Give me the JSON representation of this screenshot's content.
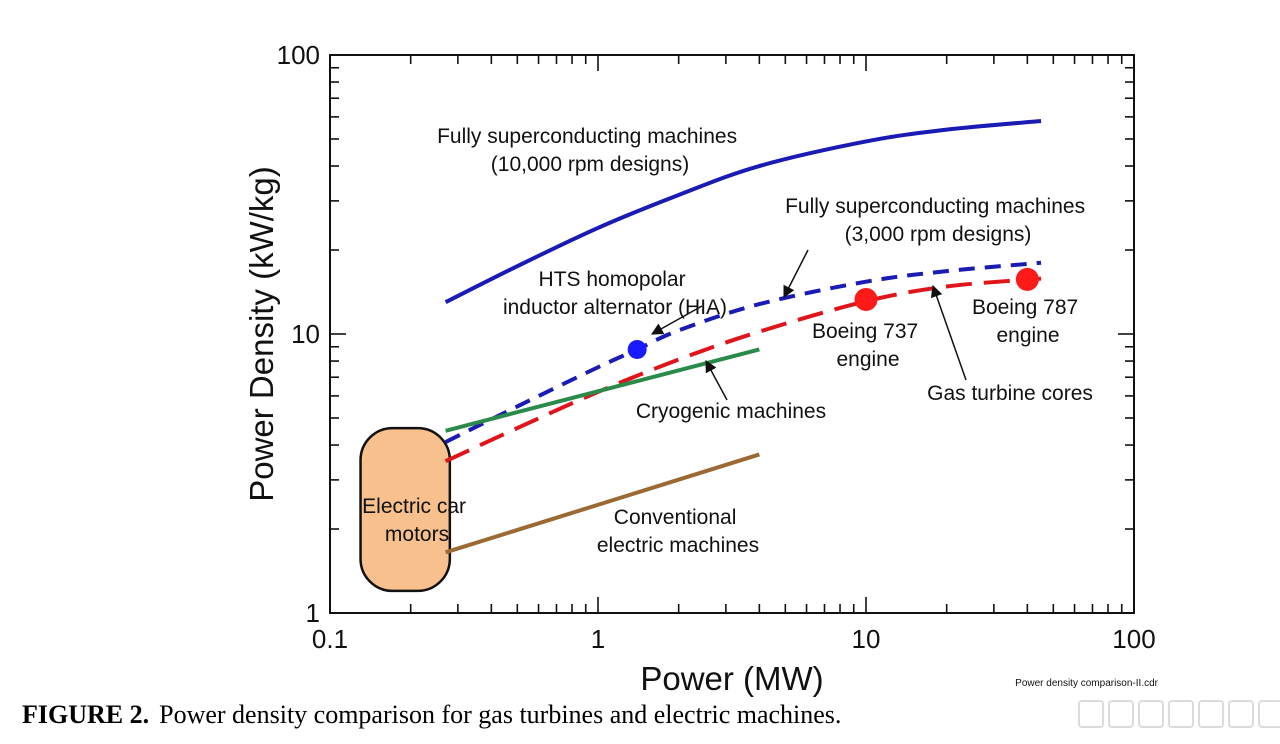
{
  "chart_data": {
    "type": "line",
    "x_scale": "log",
    "y_scale": "log",
    "xlim": [
      0.1,
      100
    ],
    "ylim": [
      1,
      100
    ],
    "xlabel": "Power (MW)",
    "ylabel": "Power Density (kW/kg)",
    "x_tick_labels": [
      "0.1",
      "1",
      "10",
      "100"
    ],
    "y_tick_labels": [
      "1",
      "10",
      "100"
    ],
    "grid": false,
    "series": [
      {
        "id": "fully_sc_10000",
        "color": "#1a1ab4",
        "style": "solid",
        "x": [
          0.27,
          0.5,
          1,
          2,
          4,
          10,
          20,
          45
        ],
        "y": [
          13,
          17.5,
          24,
          31.5,
          40,
          49,
          54,
          58
        ]
      },
      {
        "id": "fully_sc_3000",
        "color": "#1a1ab4",
        "style": "dashed",
        "x": [
          0.27,
          0.5,
          1,
          1.4,
          2,
          4,
          10,
          20,
          45
        ],
        "y": [
          4.1,
          5.5,
          7.6,
          8.8,
          10.3,
          12.8,
          15.4,
          16.8,
          18
        ]
      },
      {
        "id": "gas_turbine_cores",
        "color": "#e0151c",
        "style": "dashed",
        "x": [
          0.27,
          0.5,
          1,
          2,
          4,
          10,
          20,
          45
        ],
        "y": [
          3.5,
          4.6,
          6.2,
          8.1,
          10.2,
          13.1,
          14.8,
          15.8
        ]
      },
      {
        "id": "cryogenic",
        "color": "#2a8a4a",
        "style": "solid",
        "x": [
          0.27,
          4
        ],
        "y": [
          4.5,
          8.8
        ]
      },
      {
        "id": "conventional",
        "color": "#9b6a34",
        "style": "solid",
        "x": [
          0.27,
          4
        ],
        "y": [
          1.65,
          3.7
        ]
      }
    ],
    "points": [
      {
        "x": 1.4,
        "y": 8.8,
        "color": "#1a1aff",
        "label": "HTS homopolar inductor alternator (HIA)"
      },
      {
        "x": 10,
        "y": 13.3,
        "color": "#ff1a1a",
        "label": "Boeing 737 engine"
      },
      {
        "x": 40,
        "y": 15.7,
        "color": "#ff1a1a",
        "label": "Boeing 787 engine"
      }
    ],
    "region": {
      "label": "Electric car motors",
      "x": [
        0.13,
        0.28
      ],
      "y": [
        1.2,
        4.6
      ],
      "fill": "#f8c08c"
    },
    "annotations": {
      "fully_sc_10000": [
        "Fully superconducting machines",
        "(10,000 rpm designs)"
      ],
      "fully_sc_3000": [
        "Fully superconducting machines",
        "(3,000 rpm designs)"
      ],
      "hia": [
        "HTS homopolar",
        "inductor alternator (HIA)"
      ],
      "boeing_737": [
        "Boeing 737",
        "engine"
      ],
      "boeing_787": [
        "Boeing 787",
        "engine"
      ],
      "gas_turbine": "Gas turbine cores",
      "cryogenic": "Cryogenic machines",
      "conventional": [
        "Conventional",
        "electric machines"
      ],
      "car_motors": [
        "Electric car",
        "motors"
      ]
    },
    "file_label": "Power density comparison-II.cdr"
  },
  "caption": {
    "label": "FIGURE 2.",
    "text": "Power density comparison for gas turbines and electric machines."
  }
}
